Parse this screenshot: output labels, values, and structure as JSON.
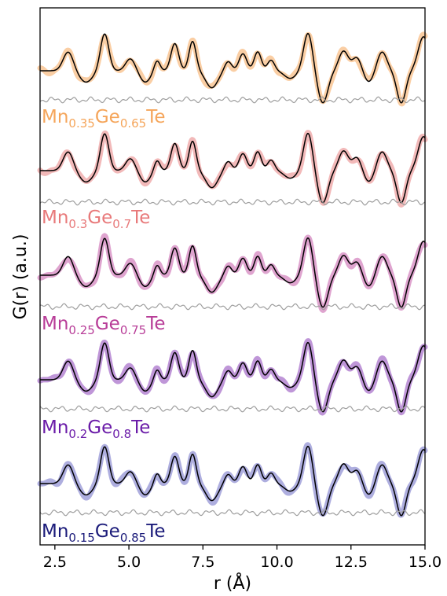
{
  "chart_data": {
    "type": "line",
    "title": "",
    "xlabel": "r (Å)",
    "ylabel": "G(r) (a.u.)",
    "xlim": [
      2.0,
      15.0
    ],
    "xticks": [
      "2.5",
      "5.0",
      "7.5",
      "10.0",
      "12.5",
      "15.0"
    ],
    "xtick_values": [
      2.5,
      5.0,
      7.5,
      10.0,
      12.5,
      15.0
    ],
    "yticks": [],
    "grid": false,
    "legend": "none",
    "series": [
      {
        "label": {
          "el1": "Mn",
          "sub1": "0.35",
          "el2": "Ge",
          "sub2": "0.65",
          "el3": "Te"
        },
        "color": "#f5a55a",
        "peaks": [
          [
            2.95,
            0.5,
            0.17
          ],
          [
            3.55,
            -0.3,
            0.22
          ],
          [
            4.18,
            0.98,
            0.14
          ],
          [
            5.05,
            0.32,
            0.16
          ],
          [
            5.55,
            -0.3,
            0.18
          ],
          [
            5.95,
            0.28,
            0.1
          ],
          [
            6.55,
            0.72,
            0.13
          ],
          [
            7.15,
            0.78,
            0.12
          ],
          [
            7.8,
            -0.45,
            0.2
          ],
          [
            8.35,
            0.25,
            0.12
          ],
          [
            8.85,
            0.45,
            0.13
          ],
          [
            9.35,
            0.5,
            0.12
          ],
          [
            9.8,
            0.28,
            0.12
          ],
          [
            10.45,
            -0.2,
            0.2
          ],
          [
            11.05,
            1.0,
            0.15
          ],
          [
            11.55,
            -0.85,
            0.17
          ],
          [
            12.25,
            0.52,
            0.16
          ],
          [
            12.7,
            0.35,
            0.15
          ],
          [
            13.1,
            -0.3,
            0.16
          ],
          [
            13.55,
            0.5,
            0.16
          ],
          [
            14.2,
            -0.85,
            0.15
          ],
          [
            14.95,
            0.9,
            0.18
          ]
        ]
      },
      {
        "label": {
          "el1": "Mn",
          "sub1": "0.3",
          "el2": "Ge",
          "sub2": "0.7",
          "el3": "Te"
        },
        "color": "#e87f7f",
        "peaks": [
          [
            2.95,
            0.5,
            0.17
          ],
          [
            3.55,
            -0.3,
            0.22
          ],
          [
            4.18,
            0.98,
            0.14
          ],
          [
            5.05,
            0.32,
            0.16
          ],
          [
            5.55,
            -0.3,
            0.18
          ],
          [
            5.95,
            0.28,
            0.1
          ],
          [
            6.55,
            0.72,
            0.13
          ],
          [
            7.15,
            0.78,
            0.12
          ],
          [
            7.8,
            -0.45,
            0.2
          ],
          [
            8.35,
            0.25,
            0.12
          ],
          [
            8.85,
            0.45,
            0.13
          ],
          [
            9.35,
            0.5,
            0.12
          ],
          [
            9.8,
            0.28,
            0.12
          ],
          [
            10.45,
            -0.2,
            0.2
          ],
          [
            11.05,
            1.0,
            0.15
          ],
          [
            11.55,
            -0.85,
            0.17
          ],
          [
            12.25,
            0.52,
            0.16
          ],
          [
            12.7,
            0.35,
            0.15
          ],
          [
            13.1,
            -0.3,
            0.16
          ],
          [
            13.55,
            0.5,
            0.16
          ],
          [
            14.2,
            -0.85,
            0.15
          ],
          [
            14.95,
            0.9,
            0.18
          ]
        ]
      },
      {
        "label": {
          "el1": "Mn",
          "sub1": "0.25",
          "el2": "Ge",
          "sub2": "0.75",
          "el3": "Te"
        },
        "color": "#c45aa8",
        "peaks": [
          [
            2.95,
            0.5,
            0.17
          ],
          [
            3.55,
            -0.3,
            0.22
          ],
          [
            4.18,
            0.98,
            0.14
          ],
          [
            5.05,
            0.32,
            0.16
          ],
          [
            5.55,
            -0.3,
            0.18
          ],
          [
            5.95,
            0.28,
            0.1
          ],
          [
            6.55,
            0.72,
            0.13
          ],
          [
            7.15,
            0.78,
            0.12
          ],
          [
            7.8,
            -0.45,
            0.2
          ],
          [
            8.35,
            0.25,
            0.12
          ],
          [
            8.85,
            0.45,
            0.13
          ],
          [
            9.35,
            0.5,
            0.12
          ],
          [
            9.8,
            0.28,
            0.12
          ],
          [
            10.45,
            -0.2,
            0.2
          ],
          [
            11.05,
            1.0,
            0.15
          ],
          [
            11.55,
            -0.85,
            0.17
          ],
          [
            12.25,
            0.52,
            0.16
          ],
          [
            12.7,
            0.35,
            0.15
          ],
          [
            13.1,
            -0.3,
            0.16
          ],
          [
            13.55,
            0.5,
            0.16
          ],
          [
            14.2,
            -0.85,
            0.15
          ],
          [
            14.95,
            0.9,
            0.18
          ]
        ]
      },
      {
        "label": {
          "el1": "Mn",
          "sub1": "0.2",
          "el2": "Ge",
          "sub2": "0.8",
          "el3": "Te"
        },
        "color": "#8a3fb8",
        "peaks": [
          [
            2.95,
            0.5,
            0.17
          ],
          [
            3.55,
            -0.3,
            0.22
          ],
          [
            4.18,
            0.98,
            0.14
          ],
          [
            5.05,
            0.32,
            0.16
          ],
          [
            5.55,
            -0.3,
            0.18
          ],
          [
            5.95,
            0.28,
            0.1
          ],
          [
            6.55,
            0.72,
            0.13
          ],
          [
            7.15,
            0.78,
            0.12
          ],
          [
            7.8,
            -0.45,
            0.2
          ],
          [
            8.35,
            0.25,
            0.12
          ],
          [
            8.85,
            0.45,
            0.13
          ],
          [
            9.35,
            0.5,
            0.12
          ],
          [
            9.8,
            0.28,
            0.12
          ],
          [
            10.45,
            -0.2,
            0.2
          ],
          [
            11.05,
            1.0,
            0.15
          ],
          [
            11.55,
            -0.85,
            0.17
          ],
          [
            12.25,
            0.52,
            0.16
          ],
          [
            12.7,
            0.35,
            0.15
          ],
          [
            13.1,
            -0.3,
            0.16
          ],
          [
            13.55,
            0.5,
            0.16
          ],
          [
            14.2,
            -0.85,
            0.15
          ],
          [
            14.95,
            0.9,
            0.18
          ]
        ]
      },
      {
        "label": {
          "el1": "Mn",
          "sub1": "0.15",
          "el2": "Ge",
          "sub2": "0.85",
          "el3": "Te"
        },
        "color": "#6b6bc4",
        "peaks": [
          [
            2.95,
            0.5,
            0.17
          ],
          [
            3.55,
            -0.3,
            0.22
          ],
          [
            4.18,
            0.98,
            0.14
          ],
          [
            5.05,
            0.32,
            0.16
          ],
          [
            5.55,
            -0.3,
            0.18
          ],
          [
            5.95,
            0.28,
            0.1
          ],
          [
            6.55,
            0.72,
            0.13
          ],
          [
            7.15,
            0.78,
            0.12
          ],
          [
            7.8,
            -0.45,
            0.2
          ],
          [
            8.35,
            0.25,
            0.12
          ],
          [
            8.85,
            0.45,
            0.13
          ],
          [
            9.35,
            0.5,
            0.12
          ],
          [
            9.8,
            0.28,
            0.12
          ],
          [
            10.45,
            -0.2,
            0.2
          ],
          [
            11.05,
            1.0,
            0.15
          ],
          [
            11.55,
            -0.85,
            0.17
          ],
          [
            12.25,
            0.52,
            0.16
          ],
          [
            12.7,
            0.35,
            0.15
          ],
          [
            13.1,
            -0.3,
            0.16
          ],
          [
            13.55,
            0.5,
            0.16
          ],
          [
            14.2,
            -0.85,
            0.15
          ],
          [
            14.95,
            0.9,
            0.18
          ]
        ]
      }
    ],
    "label_colors": [
      "#f5a55a",
      "#e8797a",
      "#b83d98",
      "#6a1ba8",
      "#1b1b7a"
    ],
    "fit_color": "#000000",
    "difference_color": "#9e9e9e"
  }
}
